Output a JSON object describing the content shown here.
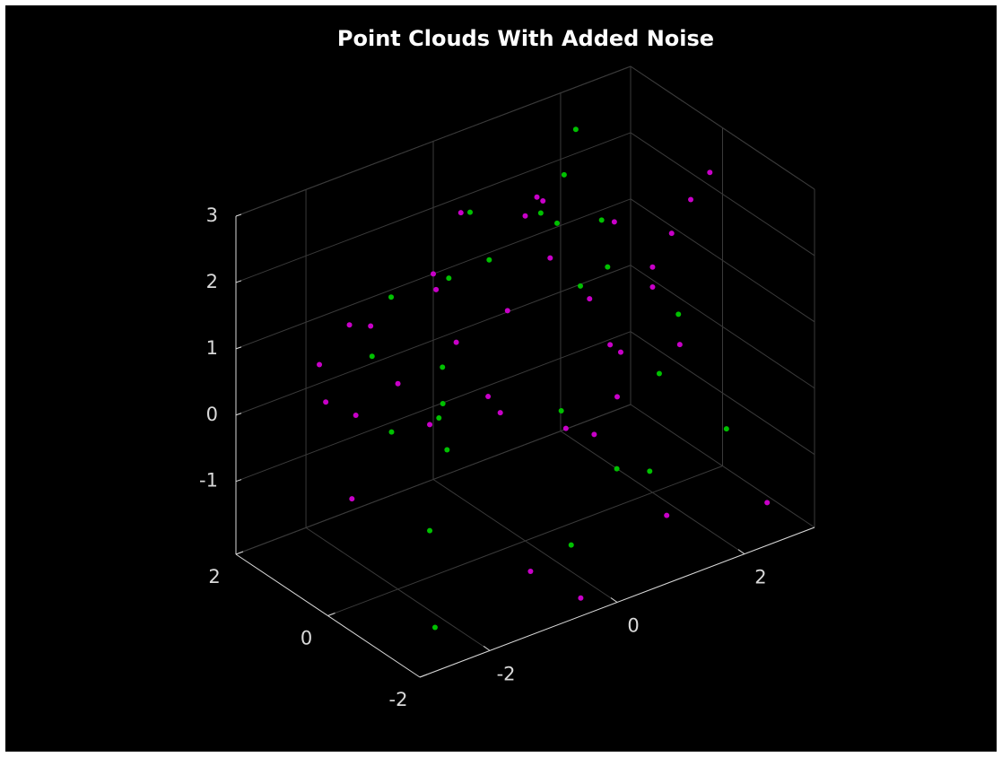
{
  "chart_data": {
    "type": "scatter3d",
    "title": "Point Clouds With Added Noise",
    "xlim": [
      -3.1,
      3.1
    ],
    "xticks": [
      -2,
      0,
      2
    ],
    "ylim": [
      -2,
      2
    ],
    "yticks": [
      -2,
      0,
      2
    ],
    "zlim": [
      -2.1,
      3
    ],
    "zticks": [
      -1,
      0,
      1,
      2,
      3
    ],
    "grid": true,
    "series": [
      {
        "color": "#c800c8",
        "x": [
          2,
          1.41,
          0,
          -1.41,
          -2,
          -1.41,
          0,
          1.41,
          1.4,
          0,
          -1.4,
          0,
          1,
          -1,
          1.5,
          0,
          -1.5,
          0,
          0,
          0.4,
          2.0,
          2.3,
          2.6,
          2.9,
          -2.4,
          -2.8,
          -2.7,
          -2.3,
          -1,
          1.5,
          0.5,
          -2,
          2.5,
          -0.5,
          1,
          2.2
        ],
        "y": [
          0,
          1.41,
          2,
          1.41,
          0,
          -1.41,
          -2,
          -1.41,
          0,
          1.4,
          0,
          -1.4,
          1,
          -1,
          0,
          1.5,
          0,
          -1.5,
          0,
          0.3,
          0,
          0,
          0,
          0,
          0.5,
          0.6,
          0.6,
          0.5,
          -1.5,
          -1,
          1.5,
          1,
          -1.8,
          -1.9,
          0.5,
          1.2
        ],
        "z": [
          1,
          1,
          1,
          1,
          1,
          1,
          1,
          1,
          2.2,
          2.2,
          2.2,
          2.2,
          2.2,
          2.2,
          0.2,
          0.2,
          0.2,
          0.2,
          2.8,
          2.8,
          1.3,
          1.7,
          2.1,
          2.4,
          1.8,
          1.3,
          0.7,
          0.4,
          -1.5,
          -1.8,
          -0.8,
          -1.2,
          -1.6,
          -1.9,
          -1.0,
          -0.5
        ]
      },
      {
        "color": "#00c000",
        "x": [
          1.85,
          0.77,
          -0.77,
          -1.85,
          -1.85,
          -0.77,
          0.77,
          1.85,
          1.2,
          0,
          -1.2,
          0,
          0.1,
          1.8,
          2.2,
          2.6,
          -2.6,
          -2.8,
          -2.6,
          0,
          -1.5,
          1.8,
          -0.8,
          2.8,
          0.8,
          -2.5
        ],
        "y": [
          0.77,
          1.85,
          1.85,
          0.77,
          -0.77,
          -1.85,
          -1.85,
          -0.77,
          0,
          1.2,
          0,
          -1.2,
          -0.2,
          1.8,
          2.2,
          2.5,
          -1.8,
          -2.0,
          -1.9,
          -1,
          0,
          0.5,
          1.8,
          -0.5,
          -1.6,
          -1.5
        ],
        "z": [
          1,
          1,
          1,
          1,
          1,
          1,
          1,
          1,
          2.3,
          2.3,
          2.3,
          2.3,
          2.9,
          1.2,
          1.6,
          2.0,
          2.3,
          1.7,
          1.1,
          -1.7,
          -1.4,
          -1.9,
          -1.0,
          -1.2,
          -0.6,
          -1.8
        ]
      }
    ]
  }
}
